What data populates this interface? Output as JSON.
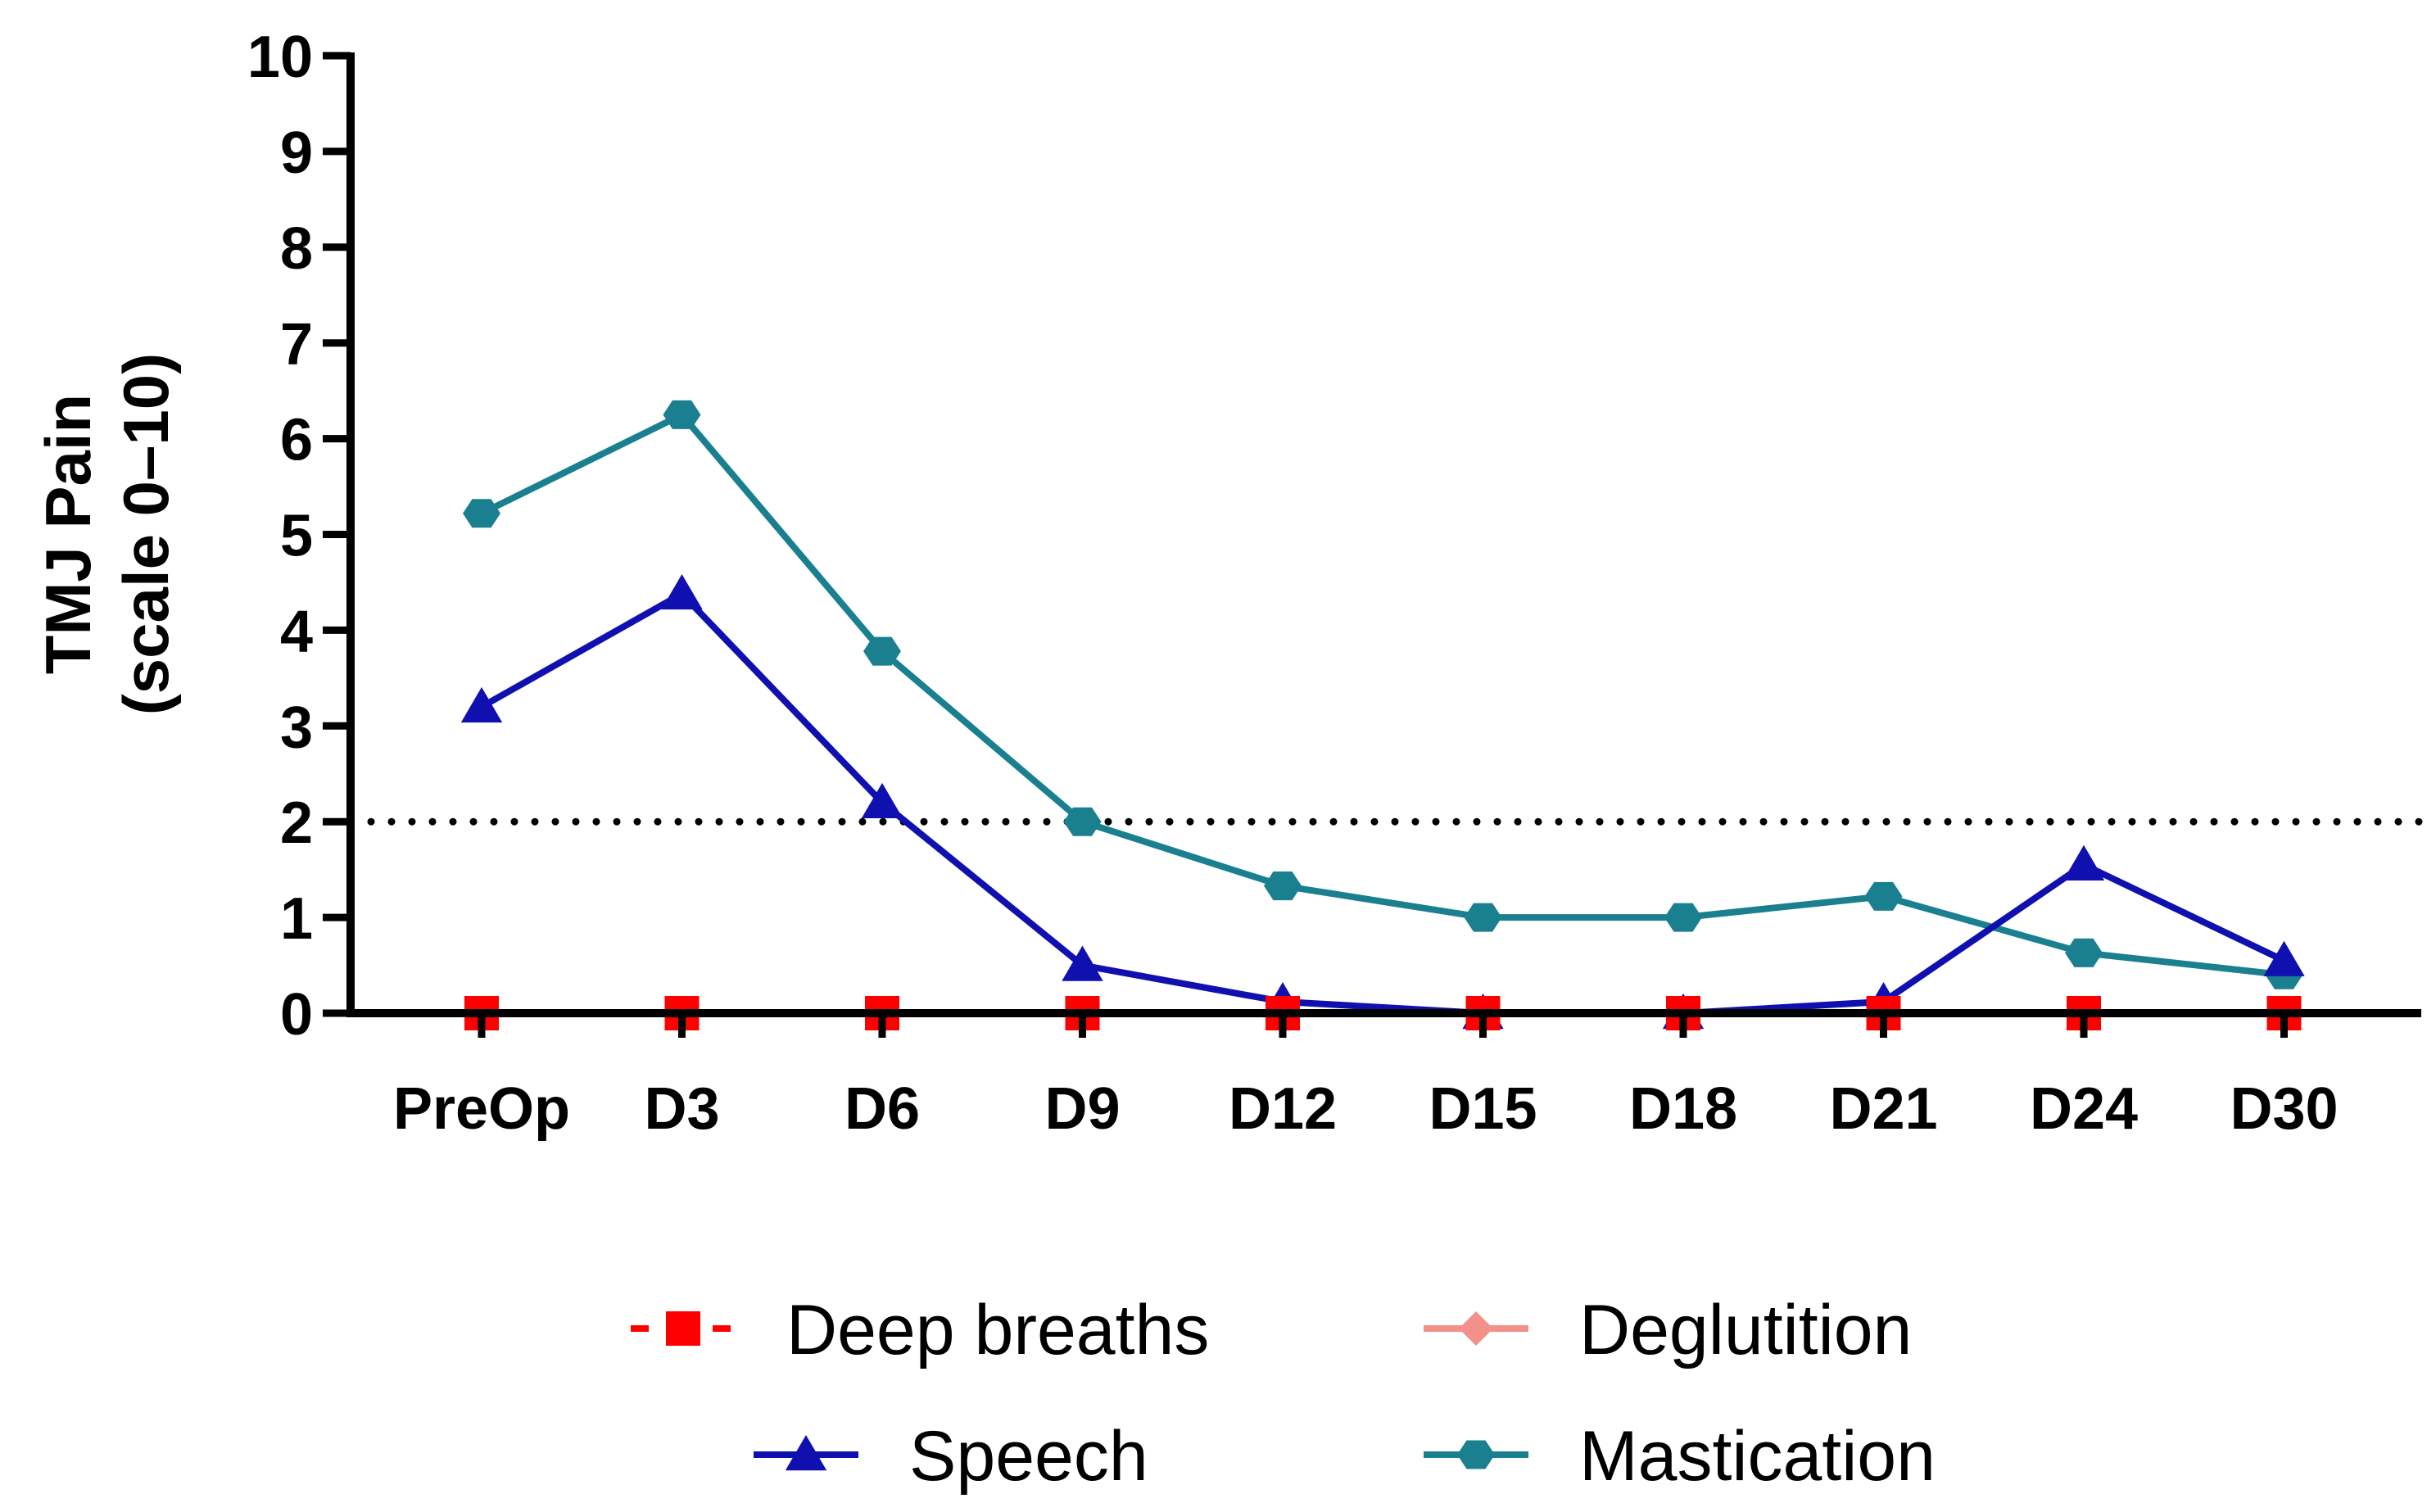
{
  "chart_data": {
    "type": "line",
    "title": "",
    "xlabel": "",
    "ylabel_lines": [
      "TMJ Pain",
      "(scale 0–10)"
    ],
    "categories": [
      "PreOp",
      "D3",
      "D6",
      "D9",
      "D12",
      "D15",
      "D18",
      "D21",
      "D24",
      "D30"
    ],
    "ylim": [
      0,
      10
    ],
    "yticks": [
      "0",
      "1",
      "2",
      "3",
      "4",
      "5",
      "6",
      "7",
      "8",
      "9",
      "10"
    ],
    "reference_line": {
      "y": 2,
      "style": "dotted",
      "color": "#000000"
    },
    "legend_position": "bottom",
    "series": [
      {
        "key": "deep",
        "name": "Deep breaths",
        "color": "#ff0000",
        "marker": "square",
        "line_style": "dashed",
        "values": [
          0,
          0,
          0,
          0,
          0,
          0,
          0,
          0,
          0,
          0
        ]
      },
      {
        "key": "deg",
        "name": "Deglutition",
        "color": "#f4908a",
        "marker": "diamond",
        "line_style": "solid",
        "values": [
          0,
          0,
          0,
          0,
          0,
          0,
          0,
          0,
          0,
          0
        ]
      },
      {
        "key": "speech",
        "name": "Speech",
        "color": "#1010b0",
        "marker": "triangle",
        "line_style": "solid",
        "values": [
          3.2,
          4.38,
          2.2,
          0.5,
          0.12,
          0,
          0,
          0.12,
          1.55,
          0.55
        ]
      },
      {
        "key": "mast",
        "name": "Mastication",
        "color": "#1a8090",
        "marker": "hexagon",
        "line_style": "solid",
        "values": [
          5.22,
          6.25,
          3.78,
          2.0,
          1.33,
          1.0,
          1.0,
          1.22,
          0.63,
          0.4
        ]
      }
    ]
  }
}
